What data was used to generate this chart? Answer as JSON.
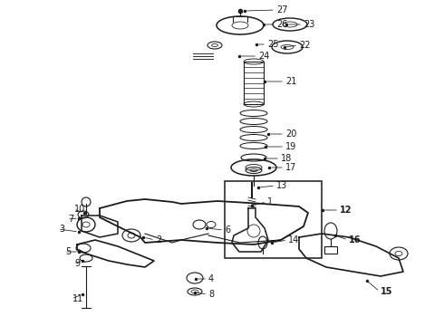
{
  "bg_color": "#ffffff",
  "line_color": "#1a1a1a",
  "fig_width": 4.9,
  "fig_height": 3.6,
  "dpi": 100,
  "xlim": [
    0,
    490
  ],
  "ylim": [
    0,
    360
  ]
}
